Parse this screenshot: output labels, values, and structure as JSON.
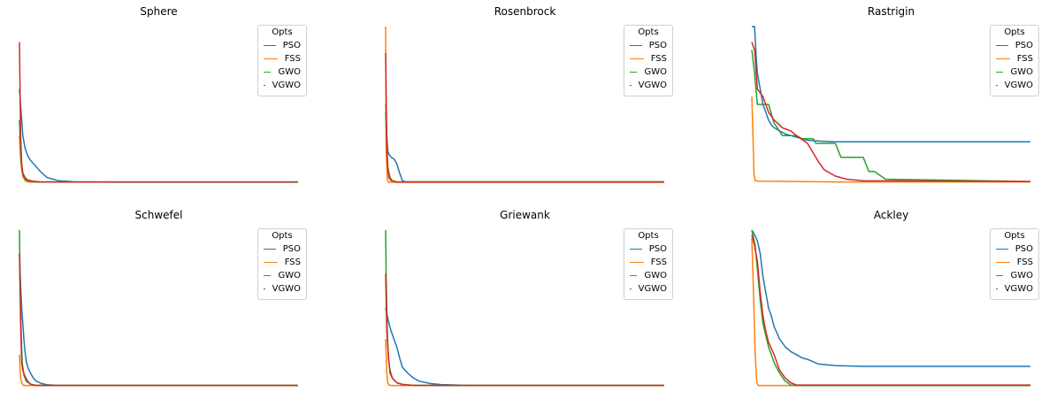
{
  "chart_data": [
    {
      "type": "line",
      "title": "Sphere",
      "legend": {
        "title": "Opts",
        "placement": "top-right"
      },
      "xlim": [
        0,
        500
      ],
      "ylim": [
        0,
        1
      ],
      "grid": false,
      "series": [
        {
          "name": "PSO",
          "color": "#1f77b4",
          "x": [
            0,
            3,
            6,
            10,
            15,
            20,
            30,
            40,
            50,
            70,
            100,
            150,
            200,
            500
          ],
          "y": [
            0.6,
            0.45,
            0.3,
            0.22,
            0.17,
            0.14,
            0.1,
            0.06,
            0.03,
            0.01,
            0.003,
            0.001,
            0.0005,
            0.0005
          ]
        },
        {
          "name": "FSS",
          "color": "#ff7f0e",
          "x": [
            0,
            2,
            4,
            6,
            10,
            15,
            20,
            500
          ],
          "y": [
            0.3,
            0.15,
            0.08,
            0.04,
            0.01,
            0.003,
            0.001,
            0.001
          ]
        },
        {
          "name": "GWO",
          "color": "#2ca02c",
          "x": [
            0,
            2,
            4,
            6,
            8,
            12,
            20,
            30,
            500
          ],
          "y": [
            0.4,
            0.2,
            0.1,
            0.05,
            0.03,
            0.015,
            0.005,
            0.002,
            0.002
          ]
        },
        {
          "name": "VGWO",
          "color": "#d62728",
          "x": [
            0,
            2,
            4,
            6,
            10,
            15,
            25,
            40,
            500
          ],
          "y": [
            0.9,
            0.3,
            0.12,
            0.06,
            0.03,
            0.015,
            0.006,
            0.002,
            0.002
          ]
        }
      ]
    },
    {
      "type": "line",
      "title": "Rosenbrock",
      "legend": {
        "title": "Opts",
        "placement": "top-right"
      },
      "xlim": [
        0,
        500
      ],
      "ylim": [
        0,
        1
      ],
      "grid": false,
      "series": [
        {
          "name": "PSO",
          "color": "#1f77b4",
          "x": [
            0,
            2,
            4,
            6,
            10,
            15,
            20,
            25,
            30,
            35,
            500
          ],
          "y": [
            0.5,
            0.3,
            0.2,
            0.18,
            0.16,
            0.15,
            0.12,
            0.06,
            0.01,
            0.003,
            0.003
          ]
        },
        {
          "name": "FSS",
          "color": "#ff7f0e",
          "x": [
            0,
            1,
            3,
            5,
            500
          ],
          "y": [
            1.0,
            0.2,
            0.02,
            0.0,
            0.0
          ]
        },
        {
          "name": "GWO",
          "color": "#2ca02c",
          "x": [
            0,
            2,
            4,
            6,
            8,
            12,
            20,
            500
          ],
          "y": [
            0.45,
            0.25,
            0.1,
            0.06,
            0.03,
            0.01,
            0.002,
            0.002
          ]
        },
        {
          "name": "VGWO",
          "color": "#d62728",
          "x": [
            0,
            2,
            4,
            6,
            10,
            20,
            500
          ],
          "y": [
            0.83,
            0.25,
            0.08,
            0.03,
            0.01,
            0.002,
            0.002
          ]
        }
      ]
    },
    {
      "type": "line",
      "title": "Rastrigin",
      "legend": {
        "title": "Opts",
        "placement": "top-right"
      },
      "xlim": [
        0,
        500
      ],
      "ylim": [
        0,
        1
      ],
      "grid": false,
      "series": [
        {
          "name": "PSO",
          "color": "#1f77b4",
          "x": [
            0,
            5,
            8,
            10,
            15,
            20,
            25,
            30,
            35,
            40,
            50,
            60,
            70,
            80,
            90,
            100,
            120,
            150,
            200,
            500
          ],
          "y": [
            1.0,
            1.0,
            0.8,
            0.7,
            0.6,
            0.5,
            0.45,
            0.4,
            0.37,
            0.35,
            0.33,
            0.31,
            0.3,
            0.29,
            0.28,
            0.27,
            0.265,
            0.26,
            0.26,
            0.26
          ]
        },
        {
          "name": "FSS",
          "color": "#ff7f0e",
          "x": [
            0,
            2,
            4,
            6,
            10,
            20,
            50,
            100,
            150,
            500
          ],
          "y": [
            0.55,
            0.3,
            0.05,
            0.01,
            0.008,
            0.007,
            0.006,
            0.004,
            0.002,
            0.002
          ]
        },
        {
          "name": "GWO",
          "color": "#2ca02c",
          "x": [
            0,
            5,
            10,
            30,
            40,
            55,
            80,
            90,
            110,
            115,
            150,
            160,
            170,
            200,
            210,
            220,
            240,
            500
          ],
          "y": [
            0.85,
            0.7,
            0.5,
            0.5,
            0.38,
            0.3,
            0.3,
            0.28,
            0.28,
            0.25,
            0.25,
            0.16,
            0.16,
            0.16,
            0.07,
            0.07,
            0.02,
            0.005
          ]
        },
        {
          "name": "VGWO",
          "color": "#d62728",
          "x": [
            0,
            5,
            10,
            20,
            30,
            40,
            55,
            70,
            80,
            100,
            120,
            130,
            150,
            170,
            200,
            500
          ],
          "y": [
            0.9,
            0.85,
            0.6,
            0.55,
            0.45,
            0.4,
            0.35,
            0.33,
            0.3,
            0.25,
            0.13,
            0.08,
            0.04,
            0.02,
            0.01,
            0.005
          ]
        }
      ]
    },
    {
      "type": "line",
      "title": "Schwefel",
      "legend": {
        "title": "Opts",
        "placement": "top-right"
      },
      "xlim": [
        0,
        500
      ],
      "ylim": [
        0,
        1
      ],
      "grid": false,
      "series": [
        {
          "name": "PSO",
          "color": "#1f77b4",
          "x": [
            0,
            2,
            4,
            6,
            8,
            10,
            12,
            15,
            20,
            25,
            30,
            40,
            50,
            70,
            100,
            500
          ],
          "y": [
            0.85,
            0.65,
            0.5,
            0.4,
            0.3,
            0.22,
            0.16,
            0.12,
            0.08,
            0.05,
            0.03,
            0.015,
            0.007,
            0.002,
            0.001,
            0.001
          ]
        },
        {
          "name": "FSS",
          "color": "#ff7f0e",
          "x": [
            0,
            2,
            4,
            6,
            10,
            500
          ],
          "y": [
            0.2,
            0.05,
            0.02,
            0.005,
            0.002,
            0.002
          ]
        },
        {
          "name": "GWO",
          "color": "#2ca02c",
          "x": [
            0,
            1,
            3,
            5,
            8,
            12,
            20,
            30,
            500
          ],
          "y": [
            1.0,
            0.7,
            0.35,
            0.15,
            0.07,
            0.03,
            0.01,
            0.003,
            0.003
          ]
        },
        {
          "name": "VGWO",
          "color": "#d62728",
          "x": [
            0,
            2,
            4,
            6,
            10,
            15,
            20,
            30,
            500
          ],
          "y": [
            0.85,
            0.4,
            0.15,
            0.1,
            0.06,
            0.03,
            0.01,
            0.003,
            0.003
          ]
        }
      ]
    },
    {
      "type": "line",
      "title": "Griewank",
      "legend": {
        "title": "Opts",
        "placement": "top-right"
      },
      "xlim": [
        0,
        500
      ],
      "ylim": [
        0,
        1
      ],
      "grid": false,
      "series": [
        {
          "name": "PSO",
          "color": "#1f77b4",
          "x": [
            0,
            3,
            6,
            10,
            15,
            20,
            25,
            30,
            40,
            50,
            60,
            80,
            100,
            150,
            200,
            500
          ],
          "y": [
            0.5,
            0.45,
            0.4,
            0.35,
            0.3,
            0.25,
            0.18,
            0.12,
            0.08,
            0.05,
            0.03,
            0.015,
            0.008,
            0.003,
            0.002,
            0.002
          ]
        },
        {
          "name": "FSS",
          "color": "#ff7f0e",
          "x": [
            0,
            2,
            4,
            6,
            10,
            500
          ],
          "y": [
            0.3,
            0.08,
            0.02,
            0.005,
            0.002,
            0.002
          ]
        },
        {
          "name": "GWO",
          "color": "#2ca02c",
          "x": [
            0,
            1,
            3,
            5,
            8,
            12,
            20,
            30,
            50,
            500
          ],
          "y": [
            1.0,
            0.7,
            0.35,
            0.18,
            0.1,
            0.05,
            0.02,
            0.01,
            0.003,
            0.003
          ]
        },
        {
          "name": "VGWO",
          "color": "#d62728",
          "x": [
            0,
            2,
            4,
            6,
            8,
            12,
            20,
            30,
            50,
            500
          ],
          "y": [
            0.72,
            0.35,
            0.25,
            0.15,
            0.08,
            0.05,
            0.02,
            0.008,
            0.003,
            0.003
          ]
        }
      ]
    },
    {
      "type": "line",
      "title": "Ackley",
      "legend": {
        "title": "Opts",
        "placement": "top-right"
      },
      "xlim": [
        0,
        500
      ],
      "ylim": [
        0,
        1
      ],
      "grid": false,
      "series": [
        {
          "name": "PSO",
          "color": "#1f77b4",
          "x": [
            0,
            5,
            10,
            15,
            20,
            25,
            30,
            35,
            40,
            50,
            60,
            70,
            80,
            90,
            100,
            120,
            150,
            200,
            250,
            500
          ],
          "y": [
            1.0,
            0.97,
            0.93,
            0.85,
            0.7,
            0.6,
            0.5,
            0.45,
            0.38,
            0.3,
            0.25,
            0.22,
            0.2,
            0.18,
            0.17,
            0.14,
            0.13,
            0.125,
            0.125,
            0.125
          ]
        },
        {
          "name": "FSS",
          "color": "#ff7f0e",
          "x": [
            0,
            3,
            6,
            9,
            12,
            500
          ],
          "y": [
            0.95,
            0.6,
            0.2,
            0.02,
            0.002,
            0.002
          ]
        },
        {
          "name": "GWO",
          "color": "#2ca02c",
          "x": [
            0,
            3,
            6,
            10,
            15,
            20,
            30,
            40,
            50,
            60,
            70,
            80,
            500
          ],
          "y": [
            1.0,
            0.95,
            0.9,
            0.75,
            0.55,
            0.4,
            0.25,
            0.15,
            0.08,
            0.03,
            0.005,
            0.002,
            0.002
          ]
        },
        {
          "name": "VGWO",
          "color": "#d62728",
          "x": [
            0,
            5,
            10,
            15,
            20,
            25,
            30,
            40,
            50,
            60,
            70,
            80,
            500
          ],
          "y": [
            0.97,
            0.9,
            0.8,
            0.6,
            0.45,
            0.35,
            0.28,
            0.2,
            0.1,
            0.05,
            0.02,
            0.005,
            0.005
          ]
        }
      ]
    }
  ]
}
